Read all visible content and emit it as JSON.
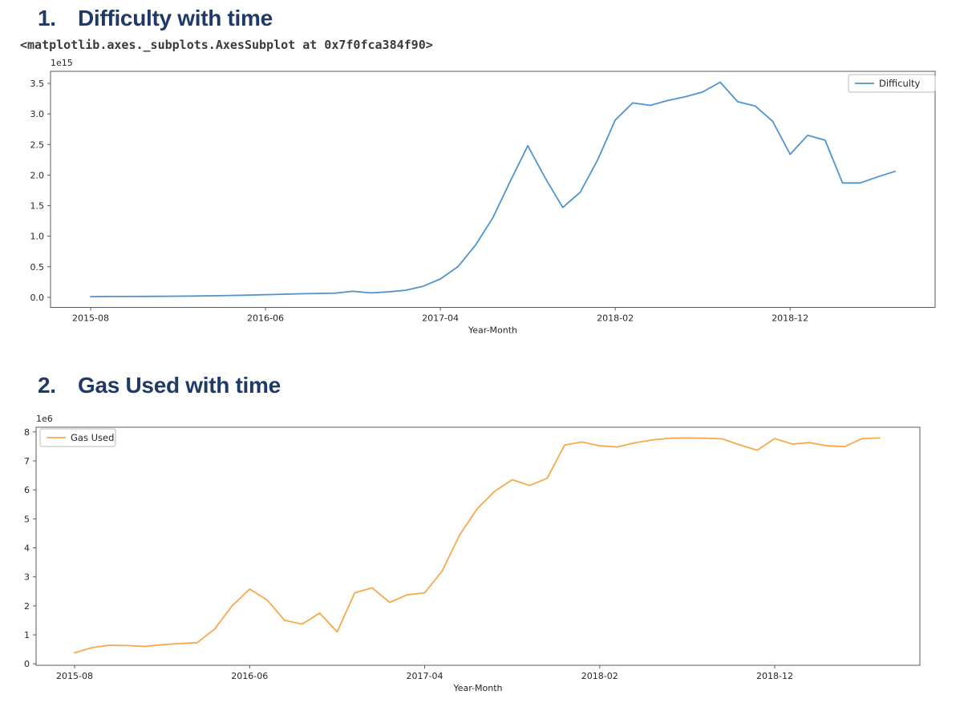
{
  "page": {
    "heading_color": "#1f3a68",
    "sections": [
      {
        "number": "1.",
        "title": "Difficulty with time"
      },
      {
        "number": "2.",
        "title": "Gas Used with time"
      }
    ],
    "repr_text": "<matplotlib.axes._subplots.AxesSubplot at 0x7f0fca384f90>"
  },
  "chart_data": [
    {
      "type": "line",
      "title": "Difficulty with time",
      "xlabel": "Year-Month",
      "ylabel": "",
      "offset_label": "1e15",
      "grid": false,
      "legend_position": "upper right",
      "ylim": [
        -0.165,
        3.697
      ],
      "y_tick_labels": [
        "0.0",
        "0.5",
        "1.0",
        "1.5",
        "2.0",
        "2.5",
        "3.0",
        "3.5"
      ],
      "x_tick_labels": [
        "2015-08",
        "2016-06",
        "2017-04",
        "2018-02",
        "2018-12"
      ],
      "x": [
        "2015-08",
        "2015-09",
        "2015-10",
        "2015-11",
        "2015-12",
        "2016-01",
        "2016-02",
        "2016-03",
        "2016-04",
        "2016-05",
        "2016-06",
        "2016-07",
        "2016-08",
        "2016-09",
        "2016-10",
        "2016-11",
        "2016-12",
        "2017-01",
        "2017-02",
        "2017-03",
        "2017-04",
        "2017-05",
        "2017-06",
        "2017-07",
        "2017-08",
        "2017-09",
        "2017-10",
        "2017-11",
        "2017-12",
        "2018-01",
        "2018-02",
        "2018-03",
        "2018-04",
        "2018-05",
        "2018-06",
        "2018-07",
        "2018-08",
        "2018-09",
        "2018-10",
        "2018-11",
        "2018-12",
        "2019-01",
        "2019-02",
        "2019-03",
        "2019-04",
        "2019-05",
        "2019-06"
      ],
      "series": [
        {
          "name": "Difficulty",
          "color": "#4d94d0",
          "values": [
            0.012,
            0.013,
            0.014,
            0.015,
            0.016,
            0.018,
            0.021,
            0.025,
            0.03,
            0.036,
            0.043,
            0.05,
            0.058,
            0.063,
            0.068,
            0.098,
            0.073,
            0.088,
            0.115,
            0.18,
            0.3,
            0.5,
            0.85,
            1.3,
            1.9,
            2.48,
            1.95,
            1.47,
            1.72,
            2.25,
            2.9,
            3.18,
            3.14,
            3.22,
            3.28,
            3.36,
            3.52,
            3.2,
            3.13,
            2.88,
            2.34,
            2.65,
            2.57,
            1.87,
            1.87,
            1.97,
            2.06
          ]
        }
      ]
    },
    {
      "type": "line",
      "title": "Gas Used with time",
      "xlabel": "Year-Month",
      "ylabel": "",
      "offset_label": "1e6",
      "grid": false,
      "legend_position": "upper left",
      "ylim": [
        -0.05,
        8.16
      ],
      "y_tick_labels": [
        "0",
        "1",
        "2",
        "3",
        "4",
        "5",
        "6",
        "7",
        "8"
      ],
      "x_tick_labels": [
        "2015-08",
        "2016-06",
        "2017-04",
        "2018-02",
        "2018-12"
      ],
      "x": [
        "2015-08",
        "2015-09",
        "2015-10",
        "2015-11",
        "2015-12",
        "2016-01",
        "2016-02",
        "2016-03",
        "2016-04",
        "2016-05",
        "2016-06",
        "2016-07",
        "2016-08",
        "2016-09",
        "2016-10",
        "2016-11",
        "2016-12",
        "2017-01",
        "2017-02",
        "2017-03",
        "2017-04",
        "2017-05",
        "2017-06",
        "2017-07",
        "2017-08",
        "2017-09",
        "2017-10",
        "2017-11",
        "2017-12",
        "2018-01",
        "2018-02",
        "2018-03",
        "2018-04",
        "2018-05",
        "2018-06",
        "2018-07",
        "2018-08",
        "2018-09",
        "2018-10",
        "2018-11",
        "2018-12",
        "2019-01",
        "2019-02",
        "2019-03",
        "2019-04",
        "2019-05",
        "2019-06"
      ],
      "series": [
        {
          "name": "Gas Used",
          "color": "#faa74b",
          "values": [
            0.38,
            0.56,
            0.64,
            0.63,
            0.6,
            0.66,
            0.7,
            0.73,
            1.2,
            2.0,
            2.58,
            2.2,
            1.5,
            1.37,
            1.75,
            1.1,
            2.45,
            2.62,
            2.12,
            2.38,
            2.45,
            3.2,
            4.45,
            5.35,
            5.95,
            6.35,
            6.15,
            6.4,
            7.55,
            7.65,
            7.52,
            7.48,
            7.62,
            7.72,
            7.78,
            7.79,
            7.78,
            7.76,
            7.55,
            7.37,
            7.77,
            7.58,
            7.63,
            7.52,
            7.49,
            7.77,
            7.79
          ]
        }
      ]
    }
  ],
  "style": {
    "spine_color": "#5a5a5a",
    "tick_text_color": "#262626",
    "legend_border_color": "#b8b8b8",
    "legend_fill": "#ffffff"
  }
}
